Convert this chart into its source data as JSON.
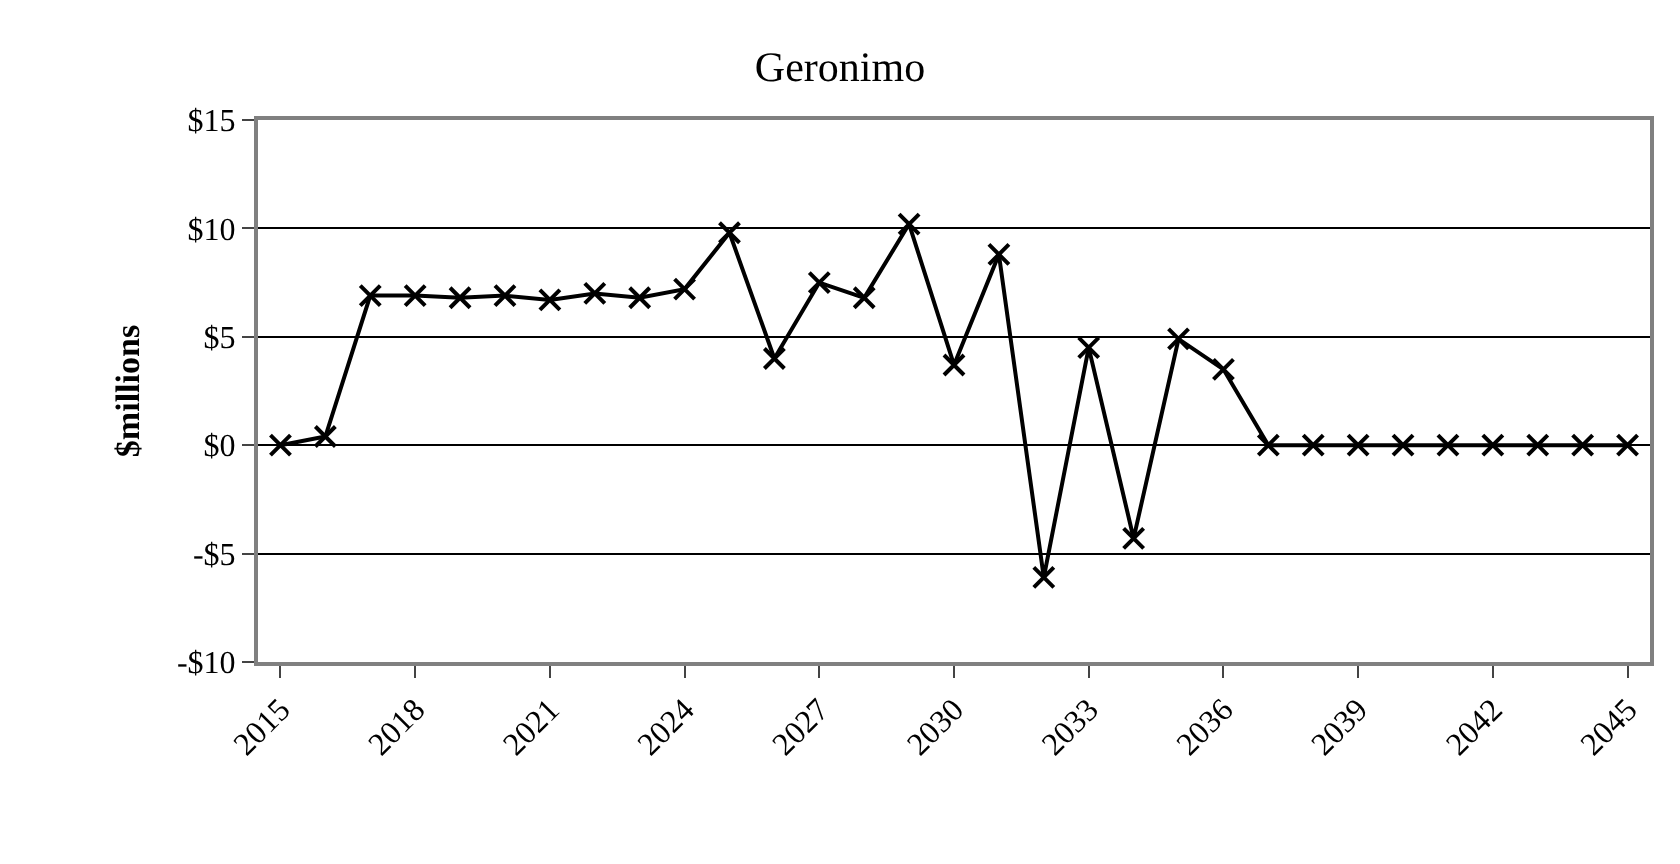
{
  "chart_data": {
    "type": "line",
    "title": "Geronimo",
    "ylabel": "$millions",
    "categories": [
      "2015",
      null,
      null,
      "2018",
      null,
      null,
      "2021",
      null,
      null,
      "2024",
      null,
      null,
      "2027",
      null,
      null,
      "2030",
      null,
      null,
      "2033",
      null,
      null,
      "2036",
      null,
      null,
      "2039",
      null,
      null,
      "2042",
      null,
      null,
      "2045"
    ],
    "series": [
      {
        "color": "#000000",
        "values": [
          0,
          0.4,
          6.9,
          6.9,
          6.8,
          6.9,
          6.7,
          7.0,
          6.8,
          7.2,
          9.8,
          4.0,
          7.5,
          6.8,
          10.2,
          3.7,
          8.8,
          -6.1,
          4.5,
          -4.3,
          4.9,
          3.5,
          0,
          0,
          0,
          0,
          0,
          0,
          0,
          0,
          0
        ]
      }
    ],
    "ylim": [
      -10,
      15
    ],
    "yticks": [
      {
        "value": -10,
        "label": "-$10"
      },
      {
        "value": -5,
        "label": "-$5"
      },
      {
        "value": 0,
        "label": "$0"
      },
      {
        "value": 5,
        "label": "$5"
      },
      {
        "value": 10,
        "label": "$10"
      },
      {
        "value": 15,
        "label": "$15"
      }
    ],
    "grid": "y",
    "marker": "cross",
    "line_style": "solid",
    "legend": false
  }
}
